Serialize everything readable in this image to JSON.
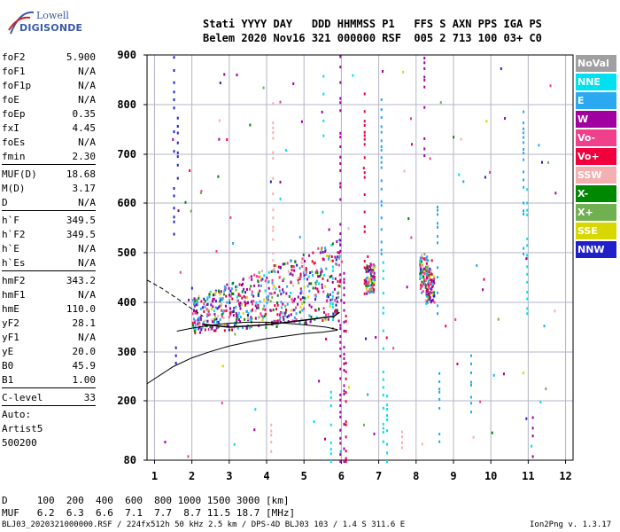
{
  "logo": {
    "line1": "Lowell",
    "line2": "DIGISONDE"
  },
  "header": {
    "row1": "Stati YYYY DAY   DDD HHMMSS P1   FFS S AXN PPS IGA PS",
    "row2": "Belem 2020 Nov16 321 000000 RSF  005 2 713 100 03+ C0"
  },
  "params": {
    "group1": [
      {
        "name": "foF2",
        "value": "5.900"
      },
      {
        "name": "foF1",
        "value": "N/A"
      },
      {
        "name": "foF1p",
        "value": "N/A"
      },
      {
        "name": "foE",
        "value": "N/A"
      },
      {
        "name": "foEp",
        "value": "0.35"
      },
      {
        "name": "fxI",
        "value": "4.45"
      },
      {
        "name": "foEs",
        "value": "N/A"
      },
      {
        "name": "fmin",
        "value": "2.30"
      }
    ],
    "group2": [
      {
        "name": "MUF(D)",
        "value": "18.68"
      },
      {
        "name": "M(D)",
        "value": "3.17"
      },
      {
        "name": "D",
        "value": "N/A"
      }
    ],
    "group3": [
      {
        "name": "h`F",
        "value": "349.5"
      },
      {
        "name": "h`F2",
        "value": "349.5"
      },
      {
        "name": "h`E",
        "value": "N/A"
      },
      {
        "name": "h`Es",
        "value": "N/A"
      }
    ],
    "group4": [
      {
        "name": "hmF2",
        "value": "343.2"
      },
      {
        "name": "hmF1",
        "value": "N/A"
      },
      {
        "name": "hmE",
        "value": "110.0"
      },
      {
        "name": "yF2",
        "value": "28.1"
      },
      {
        "name": "yF1",
        "value": "N/A"
      },
      {
        "name": "yE",
        "value": "20.0"
      },
      {
        "name": "B0",
        "value": "45.9"
      },
      {
        "name": "B1",
        "value": "1.00"
      }
    ],
    "group5": [
      {
        "name": "C-level",
        "value": "33"
      }
    ],
    "auto": [
      "Auto:",
      "Artist5",
      "500200"
    ]
  },
  "legend": [
    {
      "label": "NoVal",
      "color": "#a0a0a0"
    },
    {
      "label": "NNE",
      "color": "#00e0f0"
    },
    {
      "label": "E",
      "color": "#2aa8f0"
    },
    {
      "label": "W",
      "color": "#a000a0"
    },
    {
      "label": "Vo-",
      "color": "#f0408c"
    },
    {
      "label": "Vo+",
      "color": "#f0003c"
    },
    {
      "label": "SSW",
      "color": "#f4b0b0"
    },
    {
      "label": "X-",
      "color": "#008800"
    },
    {
      "label": "X+",
      "color": "#70b050"
    },
    {
      "label": "SSE",
      "color": "#d8d800"
    },
    {
      "label": "NNW",
      "color": "#2020c8"
    }
  ],
  "muf_table": {
    "d_row": "D     100  200  400  600  800 1000 1500 3000 [km]",
    "muf_row": "MUF   6.2  6.3  6.6  7.1  7.7  8.7 11.5 18.7 [MHz]"
  },
  "footer": {
    "left": "BLJ03_2020321000000.RSF / 224fx512h 50 kHz 2.5 km / DPS-4D BLJ03 103 / 1.4 S 311.6 E",
    "right": "Ion2Png v. 1.3.17"
  },
  "chart_data": {
    "type": "scatter",
    "xlim": [
      0.8,
      12.2
    ],
    "ylim": [
      80,
      900
    ],
    "xticks": [
      1,
      2,
      3,
      4,
      5,
      6,
      7,
      8,
      9,
      10,
      11,
      12
    ],
    "yticks": [
      80,
      200,
      300,
      400,
      500,
      600,
      700,
      800,
      900
    ],
    "grid": true,
    "profile_curve": {
      "x": [
        0.8,
        1.5,
        2.0,
        2.5,
        3.0,
        3.5,
        4.0,
        4.5,
        5.0,
        5.5,
        5.9
      ],
      "y": [
        235,
        270,
        288,
        301,
        312,
        320,
        327,
        332,
        337,
        340,
        344
      ]
    },
    "trace_curve": {
      "x": [
        5.9,
        5.6,
        5.0,
        4.5,
        4.0,
        3.5,
        3.0,
        2.5,
        2.0,
        1.6
      ],
      "y": [
        345,
        350,
        355,
        358,
        360,
        360,
        358,
        354,
        348,
        342
      ]
    },
    "dashed_curve": {
      "x": [
        0.8,
        1.2,
        1.6,
        2.0,
        2.3
      ],
      "y": [
        445,
        428,
        408,
        387,
        372
      ]
    },
    "fof2_curve": {
      "x": [
        2.3,
        3.0,
        4.0,
        5.0,
        5.8,
        5.95
      ],
      "y": [
        356,
        350,
        355,
        364,
        372,
        380
      ]
    }
  }
}
